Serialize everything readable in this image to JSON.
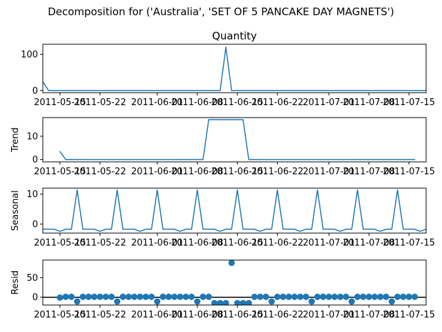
{
  "suptitle": "Decomposition for ('Australia', 'SET OF 5 PANCAKE DAY MAGNETS')",
  "colors": {
    "series": "#1f77b4",
    "zero_line": "#000000",
    "axes": "#000000"
  },
  "chart_data": [
    {
      "type": "line",
      "title": "Quantity",
      "ylabel": "",
      "xlim": [
        "2011-05-12",
        "2011-07-18"
      ],
      "ylim": [
        -6,
        128
      ],
      "yticks": [
        0,
        100
      ],
      "xticks": [
        "2011-05-15",
        "2011-05-22",
        "2011-06-01",
        "2011-06-08",
        "2011-06-15",
        "2011-06-22",
        "2011-07-01",
        "2011-07-08",
        "2011-07-15"
      ],
      "x": [
        "2011-05-12",
        "2011-05-13",
        "2011-06-12",
        "2011-06-13",
        "2011-06-14",
        "2011-07-18"
      ],
      "values": [
        24,
        0,
        0,
        120,
        0,
        0
      ]
    },
    {
      "type": "line",
      "title": "",
      "ylabel": "Trend",
      "xlim": [
        "2011-05-12",
        "2011-07-18"
      ],
      "ylim": [
        -1,
        18
      ],
      "yticks": [
        0,
        10
      ],
      "xticks": [
        "2011-05-15",
        "2011-05-22",
        "2011-06-01",
        "2011-06-08",
        "2011-06-15",
        "2011-06-22",
        "2011-07-01",
        "2011-07-08",
        "2011-07-15"
      ],
      "x": [
        "2011-05-15",
        "2011-05-16",
        "2011-06-09",
        "2011-06-10",
        "2011-06-16",
        "2011-06-17",
        "2011-07-16"
      ],
      "values": [
        3.4,
        0,
        0,
        17.1,
        17.1,
        0,
        0
      ]
    },
    {
      "type": "line",
      "title": "",
      "ylabel": "Seasonal",
      "xlim": [
        "2011-05-12",
        "2011-07-18"
      ],
      "ylim": [
        -3,
        12
      ],
      "yticks": [
        0,
        10
      ],
      "xticks": [
        "2011-05-15",
        "2011-05-22",
        "2011-06-01",
        "2011-06-08",
        "2011-06-15",
        "2011-06-22",
        "2011-07-01",
        "2011-07-08",
        "2011-07-15"
      ],
      "x": [
        "2011-05-12",
        "2011-05-13",
        "2011-05-14",
        "2011-05-15",
        "2011-05-16",
        "2011-05-17",
        "2011-05-18",
        "2011-05-19",
        "2011-05-20",
        "2011-05-21",
        "2011-05-22",
        "2011-05-23",
        "2011-05-24",
        "2011-05-25",
        "2011-05-26",
        "2011-05-27",
        "2011-05-28",
        "2011-05-29",
        "2011-05-30",
        "2011-05-31",
        "2011-06-01",
        "2011-06-02",
        "2011-06-03",
        "2011-06-04",
        "2011-06-05",
        "2011-06-06",
        "2011-06-07",
        "2011-06-08",
        "2011-06-09",
        "2011-06-10",
        "2011-06-11",
        "2011-06-12",
        "2011-06-13",
        "2011-06-14",
        "2011-06-15",
        "2011-06-16",
        "2011-06-17",
        "2011-06-18",
        "2011-06-19",
        "2011-06-20",
        "2011-06-21",
        "2011-06-22",
        "2011-06-23",
        "2011-06-24",
        "2011-06-25",
        "2011-06-26",
        "2011-06-27",
        "2011-06-28",
        "2011-06-29",
        "2011-06-30",
        "2011-07-01",
        "2011-07-02",
        "2011-07-03",
        "2011-07-04",
        "2011-07-05",
        "2011-07-06",
        "2011-07-07",
        "2011-07-08",
        "2011-07-09",
        "2011-07-10",
        "2011-07-11",
        "2011-07-12",
        "2011-07-13",
        "2011-07-14",
        "2011-07-15",
        "2011-07-16",
        "2011-07-17",
        "2011-07-18"
      ],
      "values": [
        -1.7,
        -1.7,
        -1.7,
        -2.4,
        -1.7,
        -1.7,
        11.4,
        -1.7,
        -1.7,
        -1.7,
        -2.4,
        -1.7,
        -1.7,
        11.4,
        -1.7,
        -1.7,
        -1.7,
        -2.4,
        -1.7,
        -1.7,
        11.4,
        -1.7,
        -1.7,
        -1.7,
        -2.4,
        -1.7,
        -1.7,
        11.4,
        -1.7,
        -1.7,
        -1.7,
        -2.4,
        -1.7,
        -1.7,
        11.4,
        -1.7,
        -1.7,
        -1.7,
        -2.4,
        -1.7,
        -1.7,
        11.4,
        -1.7,
        -1.7,
        -1.7,
        -2.4,
        -1.7,
        -1.7,
        11.4,
        -1.7,
        -1.7,
        -1.7,
        -2.4,
        -1.7,
        -1.7,
        11.4,
        -1.7,
        -1.7,
        -1.7,
        -2.4,
        -1.7,
        -1.7,
        11.4,
        -1.7,
        -1.7,
        -1.7,
        -2.4,
        -1.7
      ]
    },
    {
      "type": "scatter",
      "title": "",
      "ylabel": "Resid",
      "xlim": [
        "2011-05-12",
        "2011-07-18"
      ],
      "ylim": [
        -20,
        95
      ],
      "yticks": [
        0,
        50
      ],
      "xticks": [
        "2011-05-15",
        "2011-05-22",
        "2011-06-01",
        "2011-06-08",
        "2011-06-15",
        "2011-06-22",
        "2011-07-01",
        "2011-07-08",
        "2011-07-15"
      ],
      "zero_line": true,
      "x": [
        "2011-05-15",
        "2011-05-16",
        "2011-05-17",
        "2011-05-18",
        "2011-05-19",
        "2011-05-20",
        "2011-05-21",
        "2011-05-22",
        "2011-05-23",
        "2011-05-24",
        "2011-05-25",
        "2011-05-26",
        "2011-05-27",
        "2011-05-28",
        "2011-05-29",
        "2011-05-30",
        "2011-05-31",
        "2011-06-01",
        "2011-06-02",
        "2011-06-03",
        "2011-06-04",
        "2011-06-05",
        "2011-06-06",
        "2011-06-07",
        "2011-06-08",
        "2011-06-09",
        "2011-06-10",
        "2011-06-11",
        "2011-06-12",
        "2011-06-13",
        "2011-06-14",
        "2011-06-15",
        "2011-06-16",
        "2011-06-17",
        "2011-06-18",
        "2011-06-19",
        "2011-06-20",
        "2011-06-21",
        "2011-06-22",
        "2011-06-23",
        "2011-06-24",
        "2011-06-25",
        "2011-06-26",
        "2011-06-27",
        "2011-06-28",
        "2011-06-29",
        "2011-06-30",
        "2011-07-01",
        "2011-07-02",
        "2011-07-03",
        "2011-07-04",
        "2011-07-05",
        "2011-07-06",
        "2011-07-07",
        "2011-07-08",
        "2011-07-09",
        "2011-07-10",
        "2011-07-11",
        "2011-07-12",
        "2011-07-13",
        "2011-07-14",
        "2011-07-15",
        "2011-07-16"
      ],
      "values": [
        -1,
        1,
        1,
        -11,
        1,
        1,
        1,
        1,
        1,
        1,
        -11,
        1,
        1,
        1,
        1,
        1,
        1,
        -11,
        1,
        1,
        1,
        1,
        1,
        1,
        -11,
        1,
        1,
        -15,
        -15,
        -15,
        88,
        -15,
        -15,
        -15,
        1,
        1,
        1,
        -11,
        1,
        1,
        1,
        1,
        1,
        1,
        -11,
        1,
        1,
        1,
        1,
        1,
        1,
        -11,
        1,
        1,
        1,
        1,
        1,
        1,
        -11,
        1,
        1,
        1,
        1
      ]
    }
  ]
}
